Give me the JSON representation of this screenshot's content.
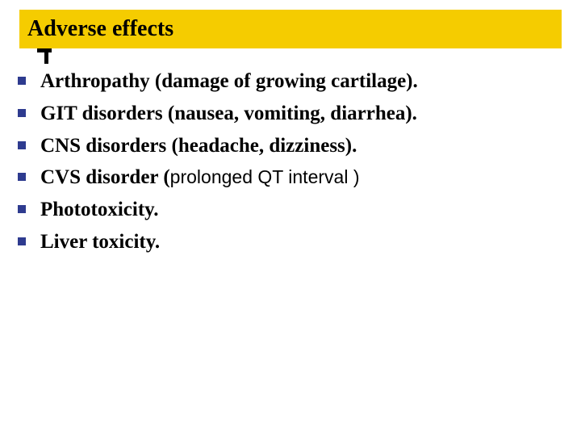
{
  "title": "Adverse effects",
  "bullets": [
    {
      "text": "Arthropathy (damage of growing cartilage)."
    },
    {
      "text": "GIT disorders (nausea, vomiting, diarrhea)."
    },
    {
      "text": "CNS disorders (headache, dizziness)."
    },
    {
      "prefix": "CVS disorder (",
      "alt": "prolonged QT interval )"
    },
    {
      "text": "Phototoxicity."
    },
    {
      "text": "Liver toxicity."
    }
  ],
  "colors": {
    "title_bg": "#f5cc00",
    "title_text": "#000000",
    "bullet_marker": "#2e3b8f",
    "body_text": "#000000",
    "background": "#ffffff"
  }
}
